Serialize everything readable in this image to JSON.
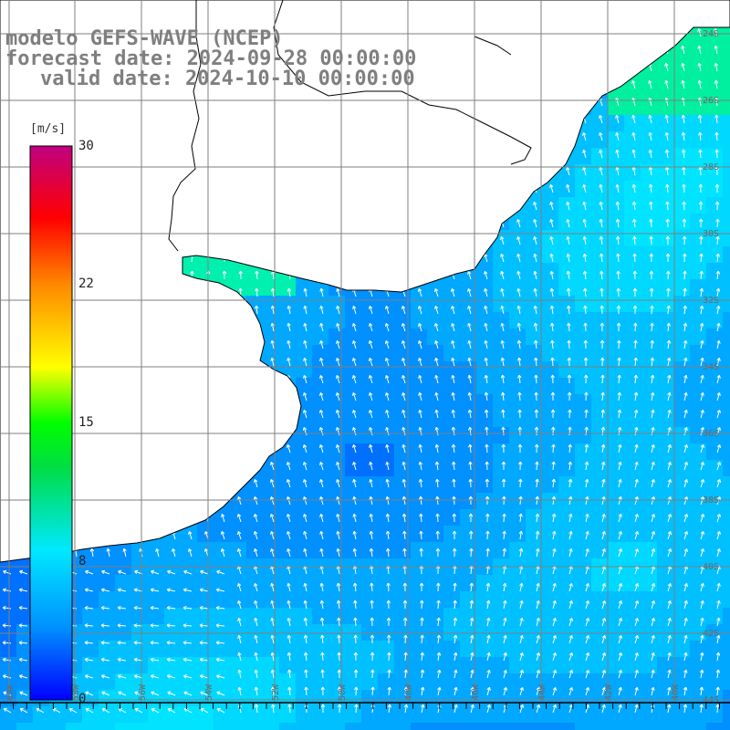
{
  "title": {
    "line1": "modelo GEFS-WAVE (NCEP)",
    "line2": "forecast date: 2024-09-28 00:00:00",
    "line3": "valid date: 2024-10-10 00:00:00"
  },
  "colorbar": {
    "unit": "[m/s]",
    "labels": [
      "30",
      "22",
      "15",
      "8",
      "0"
    ],
    "min": 0,
    "max": 30,
    "colors": [
      "#0000ff",
      "#0090ff",
      "#00e8ff",
      "#00ff00",
      "#ffff00",
      "#ff9900",
      "#ff0000",
      "#c00080"
    ]
  },
  "map": {
    "land_color": "#ffffff",
    "grid_color": "#7f7f7f",
    "bottom_tick_labels": [
      "60W",
      "58W",
      "56W",
      "54W",
      "52W",
      "50W",
      "48W",
      "46W",
      "44W",
      "42W",
      "40W"
    ],
    "right_tick_labels": [
      "24S",
      "26S",
      "28S",
      "30S",
      "32S",
      "34S",
      "36S",
      "38S",
      "40S",
      "42S",
      "44S"
    ]
  }
}
